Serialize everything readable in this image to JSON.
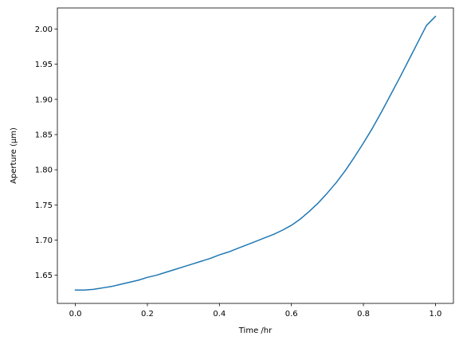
{
  "chart_data": {
    "type": "line",
    "title": "",
    "xlabel": "Time /hr",
    "ylabel": "Aperture (μm)",
    "xlim": [
      -0.05,
      1.05
    ],
    "ylim": [
      1.61,
      2.03
    ],
    "x_ticks": [
      0.0,
      0.2,
      0.4,
      0.6,
      0.8,
      1.0
    ],
    "x_tick_labels": [
      "0.0",
      "0.2",
      "0.4",
      "0.6",
      "0.8",
      "1.0"
    ],
    "y_ticks": [
      1.65,
      1.7,
      1.75,
      1.8,
      1.85,
      1.9,
      1.95,
      2.0
    ],
    "y_tick_labels": [
      "1.65",
      "1.70",
      "1.75",
      "1.80",
      "1.85",
      "1.90",
      "1.95",
      "2.00"
    ],
    "grid": false,
    "legend": "none",
    "series": [
      {
        "color": "#1f77b4",
        "x": [
          0.0,
          0.025,
          0.05,
          0.075,
          0.1,
          0.125,
          0.15,
          0.175,
          0.2,
          0.225,
          0.25,
          0.275,
          0.3,
          0.325,
          0.35,
          0.375,
          0.4,
          0.425,
          0.45,
          0.475,
          0.5,
          0.525,
          0.55,
          0.575,
          0.6,
          0.625,
          0.65,
          0.675,
          0.7,
          0.725,
          0.75,
          0.775,
          0.8,
          0.825,
          0.85,
          0.875,
          0.9,
          0.925,
          0.95,
          0.975,
          1.0
        ],
        "y": [
          1.629,
          1.629,
          1.63,
          1.632,
          1.634,
          1.637,
          1.64,
          1.643,
          1.647,
          1.65,
          1.654,
          1.658,
          1.662,
          1.666,
          1.67,
          1.674,
          1.679,
          1.683,
          1.688,
          1.693,
          1.698,
          1.703,
          1.708,
          1.714,
          1.721,
          1.73,
          1.741,
          1.753,
          1.767,
          1.782,
          1.799,
          1.818,
          1.838,
          1.859,
          1.882,
          1.906,
          1.93,
          1.955,
          1.98,
          2.005,
          2.018
        ]
      }
    ]
  }
}
